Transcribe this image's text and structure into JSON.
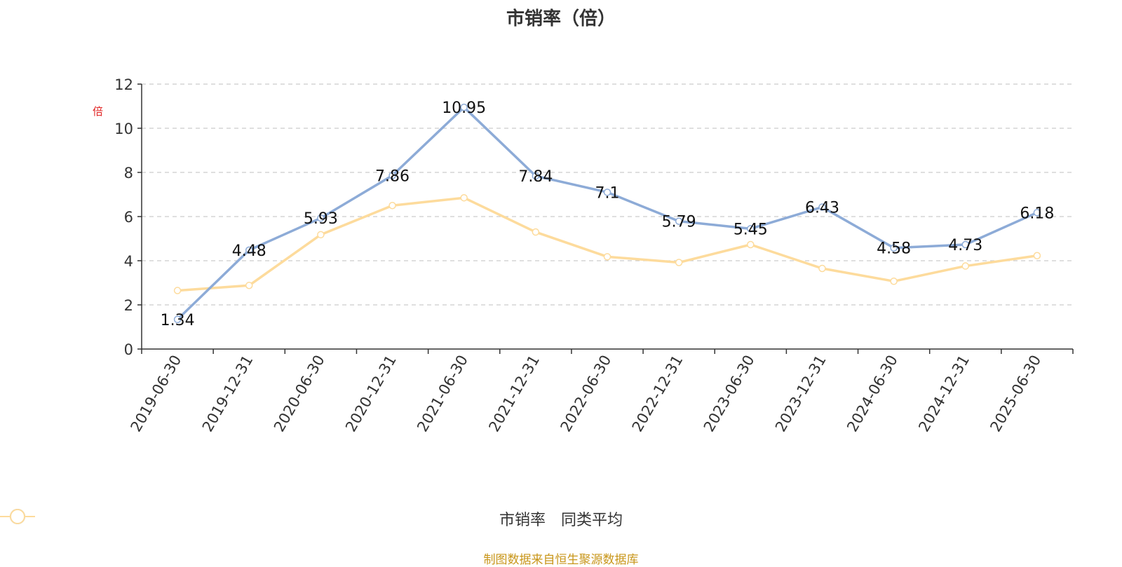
{
  "chart_data": {
    "type": "line",
    "title": "市销率（倍）",
    "ylabel": "倍",
    "ylim": [
      0,
      12
    ],
    "yticks": [
      0,
      2,
      4,
      6,
      8,
      10,
      12
    ],
    "grid": true,
    "legend_position": "bottom-center",
    "x": [
      "2019-06-30",
      "2019-12-31",
      "2020-06-30",
      "2020-12-31",
      "2021-06-30",
      "2021-12-31",
      "2022-06-30",
      "2022-12-31",
      "2023-06-30",
      "2023-12-31",
      "2024-06-30",
      "2024-12-31",
      "2025-06-30"
    ],
    "series": [
      {
        "name": "市销率",
        "color": "#8dabd7",
        "values": [
          1.34,
          4.48,
          5.93,
          7.86,
          10.95,
          7.84,
          7.1,
          5.79,
          5.45,
          6.43,
          4.58,
          4.73,
          6.18
        ],
        "labels": [
          "1.34",
          "4.48",
          "5.93",
          "7.86",
          "10.95",
          "7.84",
          "7.1",
          "5.79",
          "5.45",
          "6.43",
          "4.58",
          "4.73",
          "6.18"
        ]
      },
      {
        "name": "同类平均",
        "color": "#fddb9c",
        "values": [
          2.65,
          2.88,
          5.18,
          6.5,
          6.85,
          5.3,
          4.18,
          3.92,
          4.73,
          3.65,
          3.07,
          3.76,
          4.23
        ]
      }
    ],
    "source": "制图数据来自恒生聚源数据库"
  }
}
